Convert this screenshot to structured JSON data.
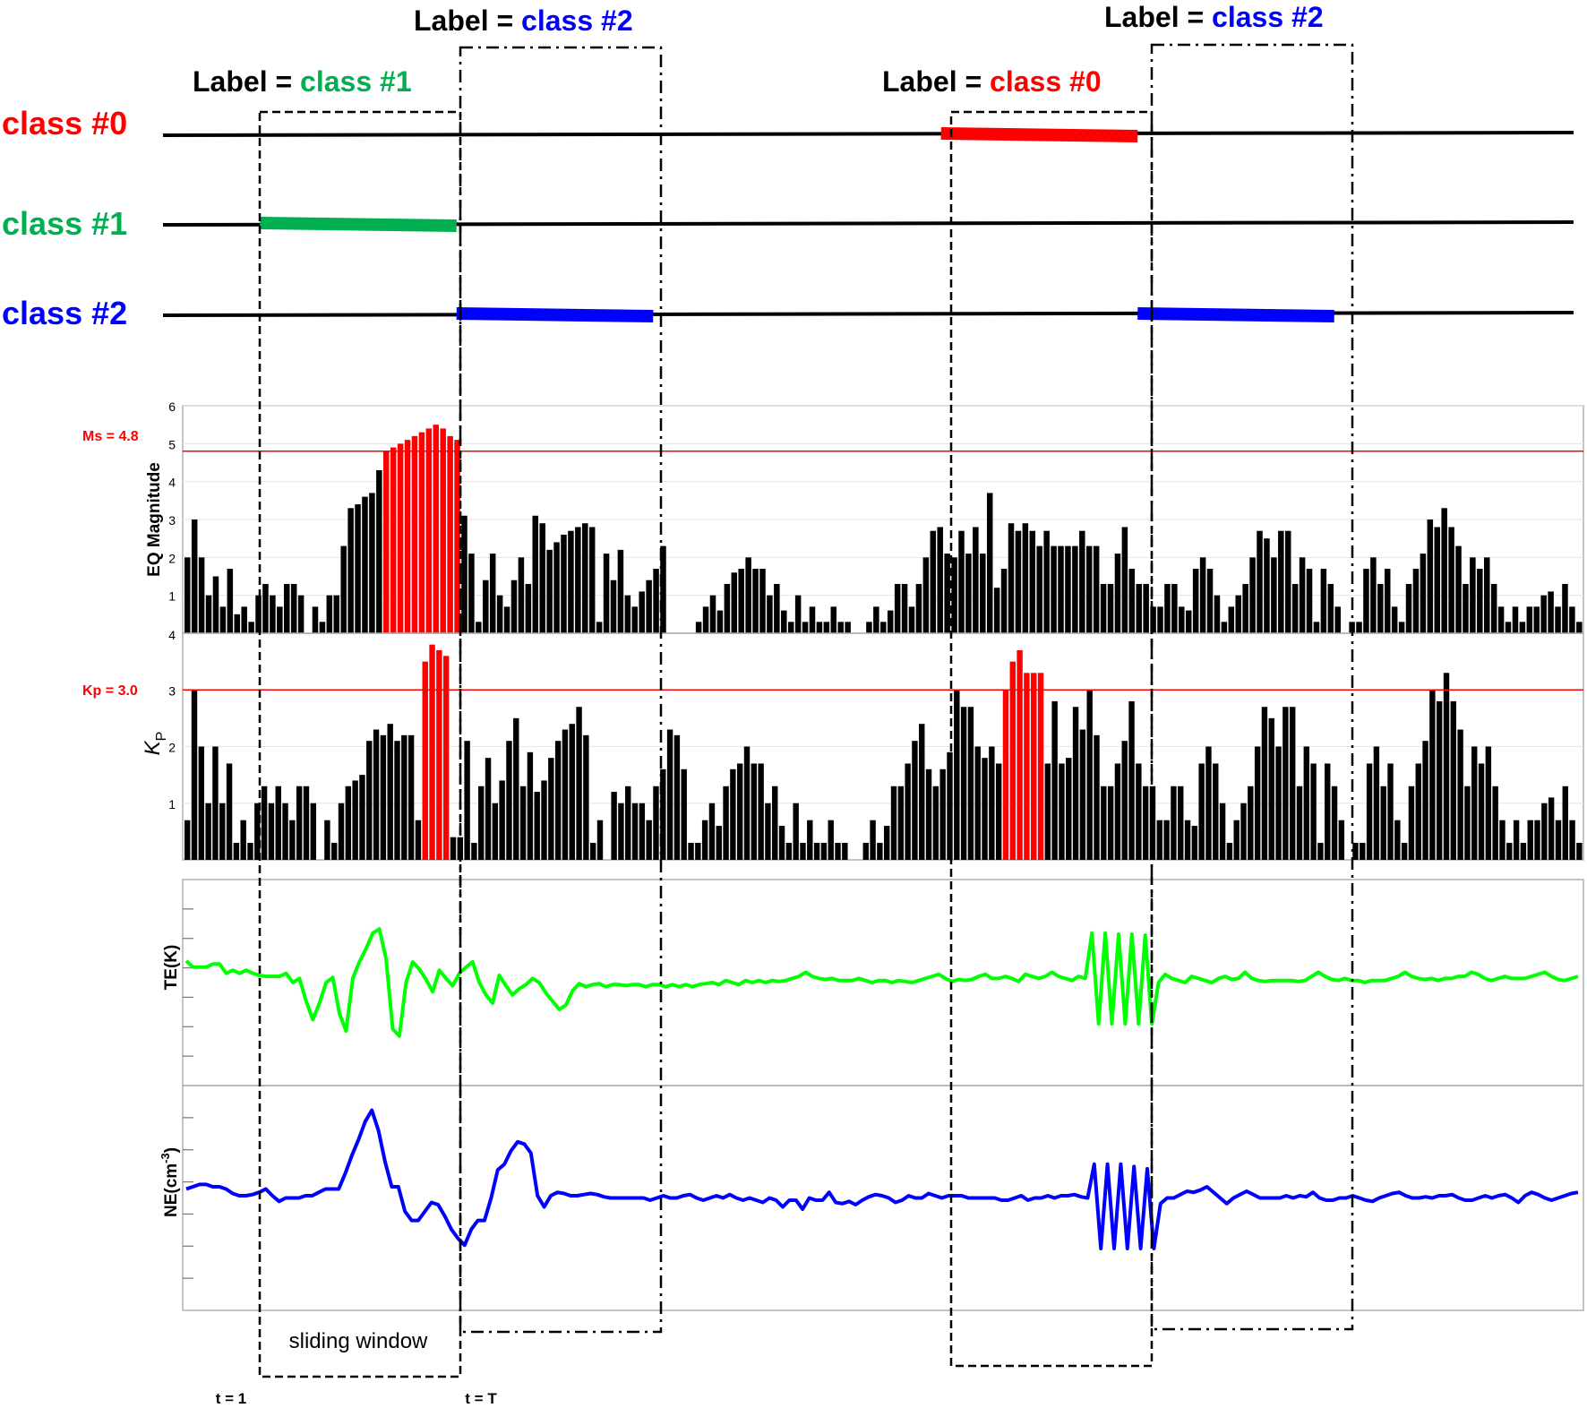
{
  "colors": {
    "class0": "#ff0000",
    "class1": "#00b050",
    "class2": "#0000ff",
    "black": "#000000",
    "te_line": "#00ff00",
    "ne_line": "#0000ff",
    "threshold": "#ff0000"
  },
  "legend": {
    "class0": "class #0",
    "class1": "class #1",
    "class2": "class #2"
  },
  "labels": [
    {
      "prefix": "Label = ",
      "cls": "class #1",
      "color": "#00b050"
    },
    {
      "prefix": "Label = ",
      "cls": "class #2",
      "color": "#0000ff"
    },
    {
      "prefix": "Label = ",
      "cls": "class #0",
      "color": "#ff0000"
    },
    {
      "prefix": "Label = ",
      "cls": "class #2",
      "color": "#0000ff"
    }
  ],
  "window_text": "sliding window",
  "time_labels": {
    "t1": "t = 1",
    "tT": "t = T"
  },
  "class_timeline": {
    "n_steps": 200,
    "segments": [
      {
        "class": 1,
        "start": 11,
        "end": 39
      },
      {
        "class": 2,
        "start": 39,
        "end": 67
      },
      {
        "class": 0,
        "start": 108,
        "end": 136
      },
      {
        "class": 2,
        "start": 136,
        "end": 164
      }
    ]
  },
  "chart_data": [
    {
      "type": "bar",
      "ylabel": "EQ Magnitude",
      "yticks": [
        "1",
        "2",
        "3",
        "4",
        "5",
        "6"
      ],
      "bottom_tick": "4",
      "ylim": [
        0,
        6
      ],
      "threshold": {
        "label": "Ms = 4.8",
        "value": 4.8
      },
      "values": [
        2.0,
        3.0,
        2.0,
        1.0,
        1.5,
        0.7,
        1.7,
        0.5,
        0.7,
        0.3,
        1.0,
        1.3,
        1.0,
        0.7,
        1.3,
        1.3,
        1.0,
        0.0,
        0.7,
        0.3,
        1.0,
        1.0,
        2.3,
        3.3,
        3.4,
        3.6,
        3.7,
        4.3,
        4.8,
        4.9,
        5.0,
        5.1,
        5.2,
        5.3,
        5.4,
        5.5,
        5.4,
        5.2,
        5.1,
        3.1,
        2.1,
        0.3,
        1.4,
        2.1,
        1.0,
        0.7,
        1.4,
        2.0,
        1.3,
        3.1,
        2.9,
        2.2,
        2.4,
        2.6,
        2.7,
        2.8,
        2.9,
        2.8,
        0.3,
        2.1,
        1.4,
        2.2,
        1.0,
        0.7,
        1.1,
        1.4,
        1.7,
        2.3,
        0.0,
        0.0,
        0.0,
        0.0,
        0.3,
        0.7,
        1.0,
        0.6,
        1.3,
        1.6,
        1.7,
        2.0,
        1.7,
        1.7,
        1.0,
        1.3,
        0.6,
        0.3,
        1.0,
        0.3,
        0.7,
        0.3,
        0.3,
        0.7,
        0.3,
        0.3,
        0.0,
        0.0,
        0.3,
        0.7,
        0.3,
        0.6,
        1.3,
        1.3,
        0.7,
        1.3,
        2.0,
        2.7,
        2.8,
        2.1,
        2.0,
        2.7,
        2.1,
        2.8,
        2.1,
        3.7,
        1.2,
        1.7,
        2.9,
        2.7,
        2.9,
        2.7,
        2.3,
        2.7,
        2.3,
        2.3,
        2.3,
        2.3,
        2.7,
        2.3,
        2.3,
        1.3,
        1.3,
        2.1,
        2.8,
        1.7,
        1.3,
        1.3,
        0.7,
        0.7,
        1.3,
        1.3,
        0.7,
        0.6,
        1.7,
        2.0,
        1.7,
        1.0,
        0.3,
        0.7,
        1.0,
        1.3,
        2.0,
        2.7,
        2.5,
        2.0,
        2.7,
        2.7,
        1.3,
        2.0,
        1.7,
        0.3,
        1.7,
        1.3,
        0.7,
        0.0,
        0.3,
        0.3,
        1.7,
        2.0,
        1.3,
        1.7,
        0.7,
        0.3,
        1.3,
        1.7,
        2.1,
        3.0,
        2.8,
        3.3,
        2.8,
        2.3,
        1.3,
        2.0,
        1.7,
        2.0,
        1.3,
        0.7,
        0.3,
        0.7,
        0.3,
        0.7,
        0.7,
        1.0,
        1.1,
        0.7,
        1.3,
        0.7,
        0.3
      ],
      "red_indices": [
        28,
        29,
        30,
        31,
        32,
        33,
        34,
        35,
        36,
        37,
        38
      ]
    },
    {
      "type": "bar",
      "ylabel": "K",
      "ylabel_sub": "P",
      "yticks": [
        "1",
        "2",
        "3"
      ],
      "ylim": [
        0,
        4
      ],
      "threshold": {
        "label": "Kp = 3.0",
        "value": 3.0
      },
      "values": [
        0.7,
        3.0,
        2.0,
        1.0,
        2.0,
        1.0,
        1.7,
        0.3,
        0.7,
        0.3,
        1.0,
        1.3,
        1.0,
        1.3,
        1.0,
        0.7,
        1.3,
        1.3,
        1.0,
        0.0,
        0.7,
        0.3,
        1.0,
        1.3,
        1.4,
        1.5,
        2.1,
        2.3,
        2.2,
        2.4,
        2.1,
        2.2,
        2.2,
        0.7,
        3.5,
        3.8,
        3.7,
        3.6,
        0.4,
        0.4,
        2.1,
        0.3,
        1.3,
        1.8,
        1.0,
        1.4,
        2.1,
        2.5,
        1.3,
        1.9,
        1.2,
        1.4,
        1.8,
        2.1,
        2.3,
        2.4,
        2.7,
        2.2,
        0.3,
        0.7,
        0.0,
        1.2,
        1.0,
        1.3,
        1.0,
        1.0,
        0.7,
        1.3,
        1.6,
        2.3,
        2.2,
        1.6,
        0.3,
        0.3,
        0.7,
        1.0,
        0.6,
        1.3,
        1.6,
        1.7,
        2.0,
        1.7,
        1.7,
        1.0,
        1.3,
        0.6,
        0.3,
        1.0,
        0.3,
        0.7,
        0.3,
        0.3,
        0.7,
        0.3,
        0.3,
        0.0,
        0.0,
        0.3,
        0.7,
        0.3,
        0.6,
        1.3,
        1.3,
        1.7,
        2.1,
        2.4,
        1.6,
        1.3,
        1.6,
        1.9,
        3.0,
        2.7,
        2.7,
        2.0,
        1.8,
        2.0,
        1.7,
        3.0,
        3.5,
        3.7,
        3.3,
        3.3,
        3.3,
        1.7,
        2.8,
        1.7,
        1.8,
        2.7,
        2.3,
        3.0,
        2.2,
        1.3,
        1.3,
        1.7,
        2.1,
        2.8,
        1.7,
        1.3,
        1.3,
        0.7,
        0.7,
        1.3,
        1.3,
        0.7,
        0.6,
        1.7,
        2.0,
        1.7,
        1.0,
        0.3,
        0.7,
        1.0,
        1.3,
        2.0,
        2.7,
        2.5,
        2.0,
        2.7,
        2.7,
        1.3,
        2.0,
        1.7,
        0.3,
        1.7,
        1.3,
        0.7,
        0.0,
        0.3,
        0.3,
        1.7,
        2.0,
        1.3,
        1.7,
        0.7,
        0.3,
        1.3,
        1.7,
        2.1,
        3.0,
        2.8,
        3.3,
        2.8,
        2.3,
        1.3,
        2.0,
        1.7,
        2.0,
        1.3,
        0.7,
        0.3,
        0.7,
        0.3,
        0.7,
        0.7,
        1.0,
        1.1,
        0.7,
        1.3,
        0.7,
        0.3
      ],
      "red_indices": [
        34,
        35,
        36,
        37,
        117,
        118,
        119,
        120,
        121,
        122
      ]
    },
    {
      "type": "line",
      "ylabel": "TE(K)",
      "ylim": [
        -1,
        1
      ],
      "tick_count": 6,
      "values": [
        0.21,
        0.15,
        0.15,
        0.15,
        0.18,
        0.18,
        0.09,
        0.12,
        0.09,
        0.12,
        0.09,
        0.07,
        0.06,
        0.06,
        0.06,
        0.09,
        0.0,
        0.04,
        -0.18,
        -0.36,
        -0.2,
        0.0,
        0.05,
        -0.3,
        -0.47,
        0.04,
        0.2,
        0.33,
        0.48,
        0.52,
        0.23,
        -0.45,
        -0.52,
        0.0,
        0.2,
        0.13,
        0.03,
        -0.09,
        0.12,
        0.04,
        -0.03,
        0.09,
        0.15,
        0.2,
        0.0,
        -0.12,
        -0.2,
        0.07,
        -0.03,
        -0.12,
        -0.06,
        -0.02,
        0.04,
        0.0,
        -0.1,
        -0.18,
        -0.26,
        -0.22,
        -0.08,
        -0.01,
        -0.04,
        -0.02,
        -0.01,
        -0.04,
        -0.02,
        -0.02,
        -0.03,
        -0.02,
        -0.02,
        -0.04,
        -0.02,
        -0.02,
        -0.04,
        -0.02,
        -0.04,
        -0.02,
        -0.04,
        -0.02,
        -0.01,
        0.0,
        -0.02,
        0.02,
        0.0,
        -0.02,
        0.02,
        0.0,
        0.02,
        0.0,
        0.02,
        0.01,
        0.02,
        0.04,
        0.06,
        0.1,
        0.06,
        0.04,
        0.03,
        0.04,
        0.02,
        0.02,
        0.02,
        0.04,
        0.02,
        0.0,
        0.02,
        0.02,
        0.0,
        0.02,
        0.01,
        0.0,
        0.02,
        0.04,
        0.06,
        0.08,
        0.04,
        0.01,
        0.03,
        0.02,
        0.03,
        0.06,
        0.08,
        0.04,
        0.04,
        0.06,
        0.04,
        0.01,
        0.08,
        0.06,
        0.04,
        0.06,
        0.1,
        0.06,
        0.04,
        0.02,
        0.06,
        0.04,
        0.48,
        -0.4,
        0.48,
        -0.4,
        0.47,
        -0.4,
        0.47,
        -0.4,
        0.46,
        -0.4,
        0.0,
        0.08,
        0.04,
        0.02,
        0.0,
        0.06,
        0.04,
        0.02,
        0.0,
        0.04,
        0.06,
        0.03,
        0.04,
        0.1,
        0.04,
        0.02,
        0.01,
        0.02,
        0.02,
        0.02,
        0.02,
        0.01,
        0.02,
        0.06,
        0.1,
        0.06,
        0.03,
        0.02,
        0.04,
        0.02,
        0.02,
        0.0,
        0.02,
        0.02,
        0.02,
        0.04,
        0.06,
        0.1,
        0.06,
        0.04,
        0.03,
        0.04,
        0.02,
        0.04,
        0.04,
        0.06,
        0.06,
        0.1,
        0.08,
        0.04,
        0.02,
        0.04,
        0.06,
        0.04,
        0.04,
        0.04,
        0.06,
        0.08,
        0.1,
        0.06,
        0.03,
        0.02,
        0.04,
        0.06
      ]
    },
    {
      "type": "line",
      "ylabel": "NE(cm",
      "ylabel_sup": "-3",
      "ylabel_end": ")",
      "ylim": [
        -1,
        1
      ],
      "tick_count": 6,
      "values": [
        0.08,
        0.1,
        0.12,
        0.12,
        0.1,
        0.1,
        0.08,
        0.04,
        0.02,
        0.02,
        0.03,
        0.05,
        0.08,
        0.02,
        -0.03,
        0.0,
        0.0,
        0.0,
        0.02,
        0.02,
        0.05,
        0.08,
        0.08,
        0.08,
        0.22,
        0.38,
        0.52,
        0.68,
        0.78,
        0.6,
        0.32,
        0.1,
        0.1,
        -0.12,
        -0.2,
        -0.2,
        -0.12,
        -0.04,
        -0.06,
        -0.16,
        -0.28,
        -0.36,
        -0.42,
        -0.28,
        -0.2,
        -0.2,
        0.0,
        0.25,
        0.3,
        0.42,
        0.5,
        0.48,
        0.4,
        0.02,
        -0.08,
        0.02,
        0.05,
        0.04,
        0.02,
        0.02,
        0.03,
        0.04,
        0.03,
        0.01,
        0.0,
        0.0,
        0.0,
        0.0,
        0.0,
        0.0,
        -0.02,
        0.0,
        0.02,
        0.0,
        0.0,
        0.02,
        0.03,
        0.0,
        -0.02,
        0.0,
        0.02,
        0.0,
        0.03,
        0.0,
        -0.02,
        0.0,
        -0.02,
        -0.04,
        0.0,
        -0.02,
        -0.08,
        -0.02,
        -0.02,
        -0.1,
        0.0,
        -0.02,
        -0.02,
        0.05,
        -0.04,
        -0.05,
        -0.03,
        -0.06,
        -0.02,
        0.01,
        0.03,
        0.02,
        0.0,
        -0.04,
        -0.02,
        0.02,
        0.0,
        0.0,
        0.04,
        0.02,
        0.0,
        0.02,
        0.02,
        0.02,
        0.0,
        0.0,
        0.0,
        0.0,
        0.0,
        -0.02,
        -0.02,
        0.0,
        0.02,
        -0.02,
        0.0,
        0.0,
        0.02,
        0.0,
        0.02,
        0.02,
        0.03,
        0.01,
        0.0,
        0.3,
        -0.45,
        0.3,
        -0.45,
        0.3,
        -0.45,
        0.28,
        -0.45,
        0.26,
        -0.45,
        -0.05,
        0.0,
        0.0,
        0.03,
        0.06,
        0.05,
        0.07,
        0.1,
        0.05,
        0.0,
        -0.05,
        0.0,
        0.03,
        0.06,
        0.03,
        0.0,
        0.0,
        0.0,
        0.0,
        0.02,
        0.0,
        0.02,
        0.01,
        0.05,
        0.0,
        -0.02,
        -0.02,
        0.0,
        0.0,
        0.02,
        0.0,
        -0.02,
        -0.03,
        0.0,
        0.02,
        0.04,
        0.05,
        0.02,
        0.0,
        0.0,
        0.01,
        0.0,
        0.02,
        0.02,
        0.03,
        0.0,
        -0.02,
        -0.02,
        0.0,
        0.02,
        0.0,
        0.02,
        0.03,
        0.0,
        -0.04,
        0.02,
        0.05,
        0.03,
        0.0,
        -0.02,
        0.0,
        0.02,
        0.04,
        0.05
      ]
    }
  ]
}
